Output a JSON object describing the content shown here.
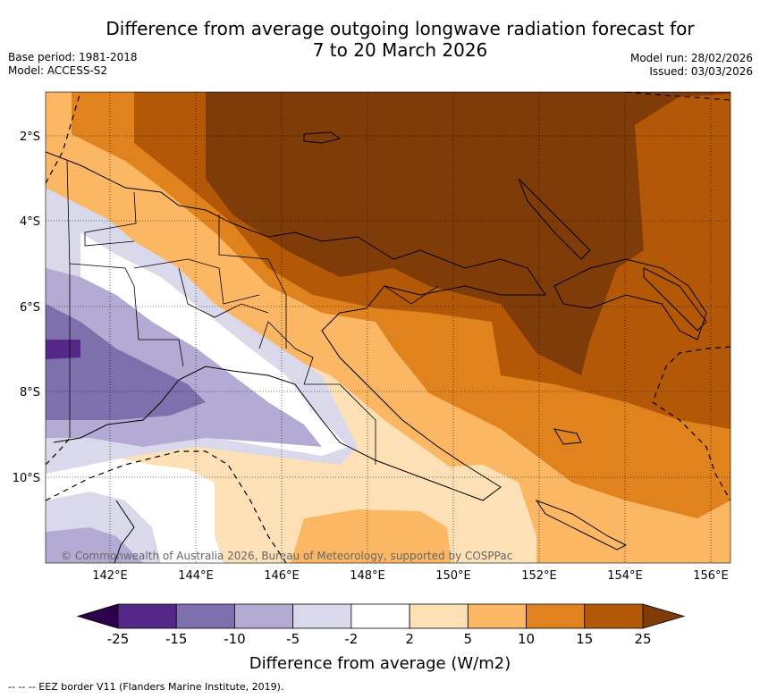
{
  "title": {
    "line1": "Difference from average outgoing longwave radiation forecast for",
    "line2": "7 to 20 March 2026"
  },
  "meta": {
    "base_period": "Base period: 1981-2018",
    "model": "Model: ACCESS-S2",
    "model_run": "Model run: 28/02/2026",
    "issued": "Issued: 03/03/2026"
  },
  "map": {
    "lat_labels": [
      "2°S",
      "4°S",
      "6°S",
      "8°S",
      "10°S"
    ],
    "lon_labels": [
      "142°E",
      "144°E",
      "146°E",
      "148°E",
      "150°E",
      "152°E",
      "154°E",
      "156°E"
    ],
    "copyright": "© Commonwealth of Australia 2026, Bureau of Meteorology, supported by COSPPac",
    "colors": {
      "lt_m15": "#542789",
      "m15_m10": "#7e70ad",
      "m10_m5": "#b3abd3",
      "m5_m2": "#d9d9eb",
      "m2_2": "#ffffff",
      "2_5": "#fde0b6",
      "5_10": "#fbb764",
      "10_15": "#e0821d",
      "15_25": "#b35806",
      "gt_25": "#7f3b08"
    }
  },
  "colorbar": {
    "ticks": [
      "-25",
      "-15",
      "-10",
      "-5",
      "-2",
      "2",
      "5",
      "10",
      "15",
      "25"
    ],
    "colors": [
      "#542789",
      "#7e70ad",
      "#b3abd3",
      "#d9d9eb",
      "#ffffff",
      "#fde0b6",
      "#fbb764",
      "#e0821d",
      "#b35806"
    ],
    "under_color": "#2d004b",
    "over_color": "#7f3b08",
    "label": "Difference from average (W/m2)"
  },
  "footer": "--  --  -- EEZ border V11 (Flanders Marine Institute, 2019)."
}
